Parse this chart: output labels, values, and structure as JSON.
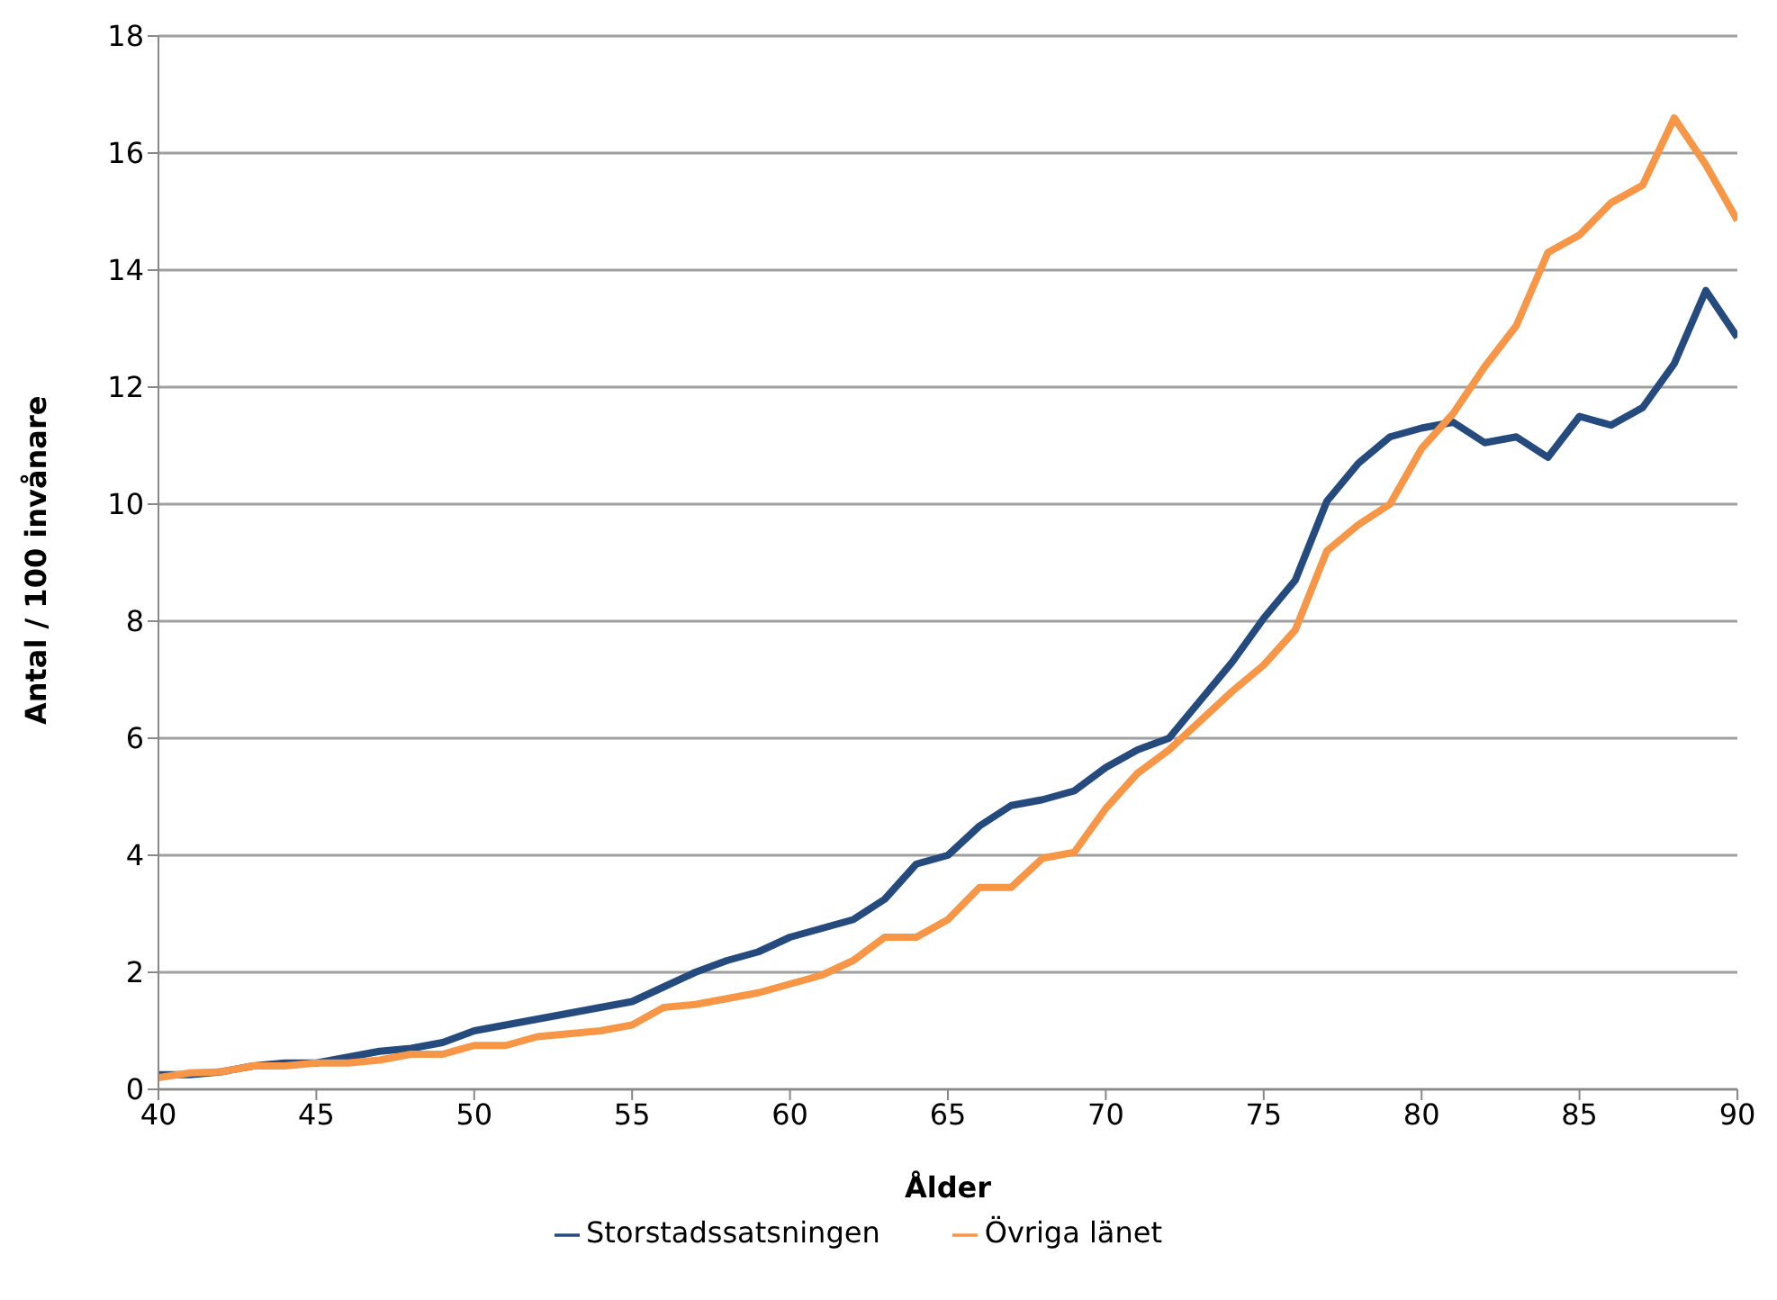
{
  "chart_data": {
    "type": "line",
    "xlabel": "Ålder",
    "ylabel": "Antal / 100 invånare",
    "x": [
      40,
      41,
      42,
      43,
      44,
      45,
      46,
      47,
      48,
      49,
      50,
      51,
      52,
      53,
      54,
      55,
      56,
      57,
      58,
      59,
      60,
      61,
      62,
      63,
      64,
      65,
      66,
      67,
      68,
      69,
      70,
      71,
      72,
      73,
      74,
      75,
      76,
      77,
      78,
      79,
      80,
      81,
      82,
      83,
      84,
      85,
      86,
      87,
      88,
      89,
      90
    ],
    "series": [
      {
        "name": "Storstadssatsningen",
        "color": "#254b7e",
        "values": [
          0.25,
          0.25,
          0.3,
          0.4,
          0.45,
          0.45,
          0.55,
          0.65,
          0.7,
          0.8,
          1.0,
          1.1,
          1.2,
          1.3,
          1.4,
          1.5,
          1.75,
          2.0,
          2.2,
          2.35,
          2.6,
          2.75,
          2.9,
          3.25,
          3.85,
          4.0,
          4.5,
          4.85,
          4.95,
          5.1,
          5.5,
          5.8,
          6.0,
          6.65,
          7.3,
          8.05,
          8.7,
          10.05,
          10.7,
          11.15,
          11.3,
          11.4,
          11.05,
          11.15,
          10.8,
          11.5,
          11.35,
          11.65,
          12.4,
          13.65,
          12.85
        ]
      },
      {
        "name": "Övriga länet",
        "color": "#f79646",
        "values": [
          0.2,
          0.28,
          0.3,
          0.4,
          0.4,
          0.45,
          0.45,
          0.5,
          0.6,
          0.6,
          0.75,
          0.75,
          0.9,
          0.95,
          1.0,
          1.1,
          1.4,
          1.45,
          1.55,
          1.65,
          1.8,
          1.95,
          2.2,
          2.6,
          2.6,
          2.9,
          3.45,
          3.45,
          3.95,
          4.05,
          4.8,
          5.4,
          5.8,
          6.3,
          6.8,
          7.25,
          7.85,
          9.2,
          9.65,
          10.0,
          10.95,
          11.55,
          12.35,
          13.05,
          14.3,
          14.6,
          15.15,
          15.45,
          16.6,
          15.8,
          14.85
        ]
      }
    ],
    "xlim": [
      40,
      90
    ],
    "xticks": [
      40,
      45,
      50,
      55,
      60,
      65,
      70,
      75,
      80,
      85,
      90
    ],
    "ylim": [
      0,
      18
    ],
    "yticks": [
      0,
      2,
      4,
      6,
      8,
      10,
      12,
      14,
      16,
      18
    ],
    "grid": "y",
    "legend": "bottom",
    "marker": "none",
    "line_style": "solid"
  }
}
